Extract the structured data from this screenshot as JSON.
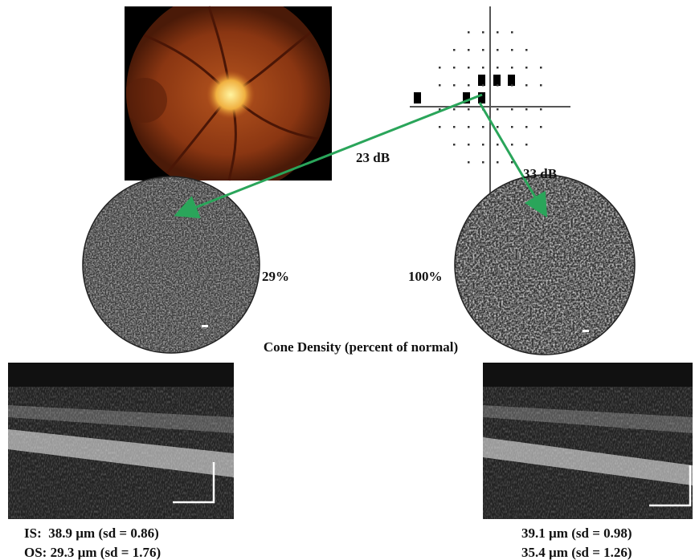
{
  "labels": {
    "sensitivity_left": "23 dB",
    "sensitivity_right": "33 dB",
    "density_left": "29%",
    "density_right": "100%",
    "density_caption": "Cone Density (percent of normal)"
  },
  "measurements": {
    "left": {
      "is": "IS:  38.9 µm (sd = 0.86)",
      "os": "OS: 29.3 µm (sd = 1.76)"
    },
    "right": {
      "is": "39.1 µm (sd = 0.98)",
      "os": "35.4 µm (sd = 1.26)"
    }
  }
}
